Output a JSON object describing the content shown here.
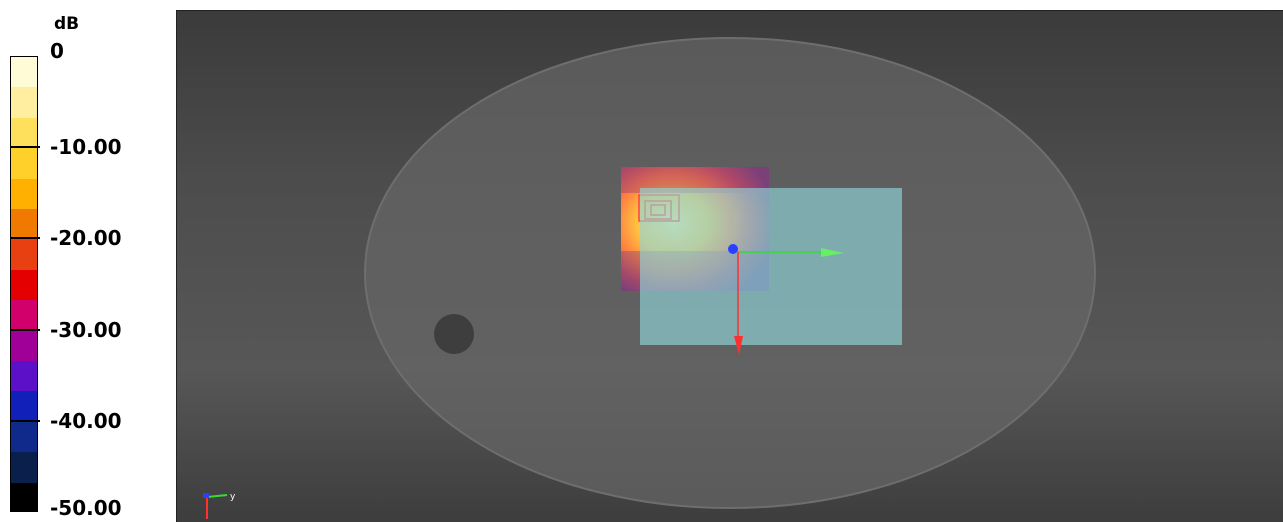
{
  "legend": {
    "unit": "dB",
    "colors": [
      "#fffbd6",
      "#ffeea0",
      "#ffe05c",
      "#ffd02a",
      "#ffb000",
      "#f07a00",
      "#e84010",
      "#e40000",
      "#d2006a",
      "#a00098",
      "#5c10c8",
      "#1020b8",
      "#102a8c",
      "#0a1f4c",
      "#000000"
    ],
    "ticks": [
      {
        "label": "0",
        "value": 0
      },
      {
        "label": "-10.00",
        "value": -10
      },
      {
        "label": "-20.00",
        "value": -20
      },
      {
        "label": "-30.00",
        "value": -30
      },
      {
        "label": "-40.00",
        "value": -40
      },
      {
        "label": "-50.00",
        "value": -50
      }
    ],
    "range": [
      -50,
      0
    ]
  },
  "viewport": {
    "axis_triad": {
      "y_label": "y"
    },
    "colors": {
      "dish": "#666666",
      "plane": "#8fd6d8",
      "x_axis": "#ff3030",
      "y_axis": "#33dd33",
      "z_axis": "#2a40ff"
    }
  }
}
